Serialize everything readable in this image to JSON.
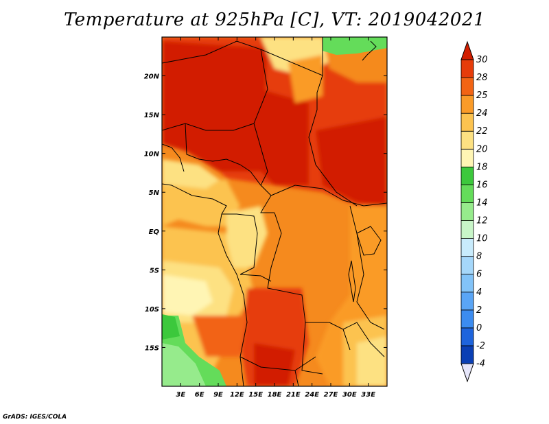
{
  "title": "Temperature at 925hPa [C], VT: 2019042021",
  "credit": "GrADS: IGES/COLA",
  "map": {
    "lon_range": [
      0,
      36
    ],
    "lat_range": [
      -20,
      25
    ],
    "lon_ticks": [
      {
        "value": 3,
        "label": "3E"
      },
      {
        "value": 6,
        "label": "6E"
      },
      {
        "value": 9,
        "label": "9E"
      },
      {
        "value": 12,
        "label": "12E"
      },
      {
        "value": 15,
        "label": "15E"
      },
      {
        "value": 18,
        "label": "18E"
      },
      {
        "value": 21,
        "label": "21E"
      },
      {
        "value": 24,
        "label": "24E"
      },
      {
        "value": 27,
        "label": "27E"
      },
      {
        "value": 30,
        "label": "30E"
      },
      {
        "value": 33,
        "label": "33E"
      }
    ],
    "lat_ticks": [
      {
        "value": 20,
        "label": "20N"
      },
      {
        "value": 15,
        "label": "15N"
      },
      {
        "value": 10,
        "label": "10N"
      },
      {
        "value": 5,
        "label": "5N"
      },
      {
        "value": 0,
        "label": "EQ"
      },
      {
        "value": -5,
        "label": "5S"
      },
      {
        "value": -10,
        "label": "10S"
      },
      {
        "value": -15,
        "label": "15S"
      }
    ]
  },
  "colorbar": {
    "levels": [
      "-4",
      "-2",
      "0",
      "2",
      "4",
      "6",
      "8",
      "10",
      "12",
      "14",
      "16",
      "18",
      "20",
      "22",
      "24",
      "25",
      "28",
      "30"
    ],
    "colors": [
      "#120a78",
      "#0a3fb4",
      "#1e64dc",
      "#3c8cf0",
      "#5aa5f5",
      "#82c3f8",
      "#a5d7fa",
      "#c8ebfc",
      "#c8f5c8",
      "#96eb8c",
      "#64dc5a",
      "#3cc83c",
      "#fff5b4",
      "#fde182",
      "#fcc350",
      "#fa9b28",
      "#f26414",
      "#e63c0a",
      "#d21e00"
    ],
    "below_color": "#e6e6fa",
    "above_color": "#d21e00"
  }
}
